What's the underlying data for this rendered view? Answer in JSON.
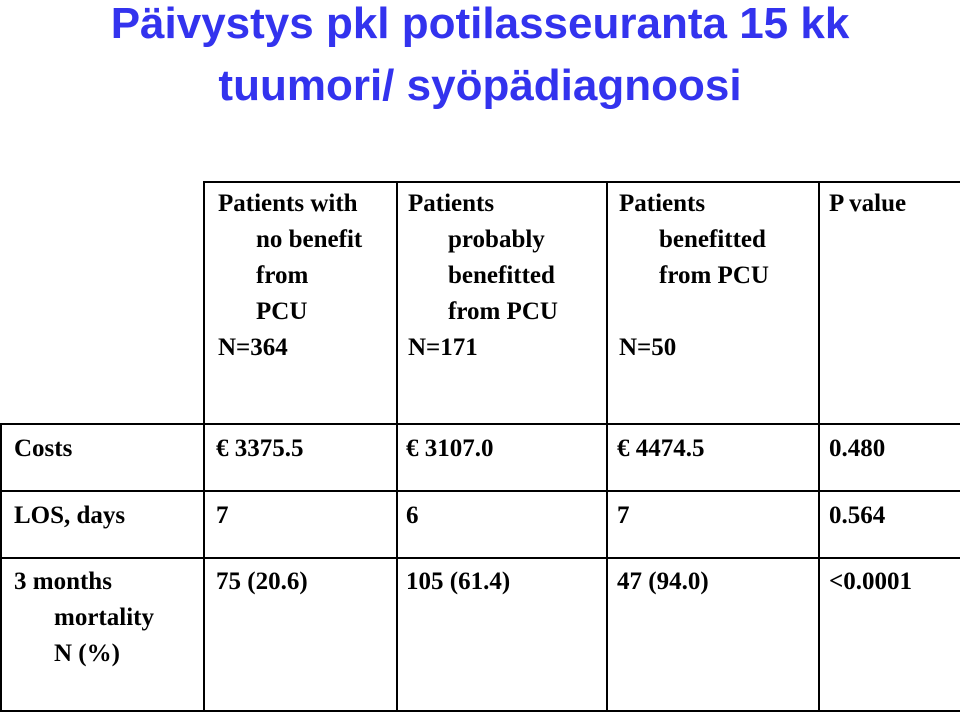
{
  "title": {
    "line1": "Päivystys pkl potilasseuranta 15 kk",
    "line2": "tuumori/ syöpädiagnoosi"
  },
  "table": {
    "headers": [
      {
        "lines": [
          "Patients with",
          "no benefit",
          "from",
          "PCU",
          "N=364"
        ]
      },
      {
        "lines": [
          "Patients",
          "probably",
          "benefitted",
          "from PCU",
          "N=171"
        ]
      },
      {
        "lines": [
          "Patients",
          "benefitted",
          "from PCU",
          "",
          "N=50"
        ]
      },
      {
        "lines": [
          "P value"
        ]
      }
    ],
    "rows": [
      {
        "label": [
          "Costs"
        ],
        "values": [
          "€ 3375.5",
          "€ 3107.0",
          "€ 4474.5",
          "0.480"
        ]
      },
      {
        "label": [
          "LOS, days"
        ],
        "values": [
          "7",
          "6",
          "7",
          "0.564"
        ]
      },
      {
        "label": [
          "3 months",
          "mortality",
          "N (%)"
        ],
        "values": [
          "75 (20.6)",
          "105 (61.4)",
          "47 (94.0)",
          "<0.0001"
        ]
      }
    ]
  }
}
